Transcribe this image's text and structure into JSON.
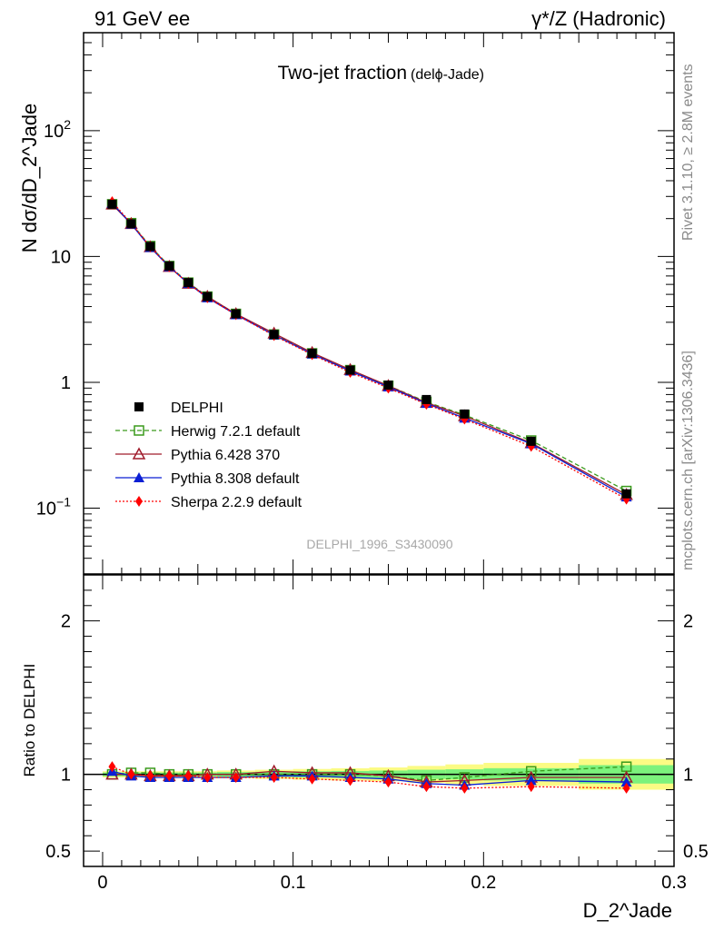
{
  "header": {
    "left": "91 GeV ee",
    "right": "γ*/Z (Hadronic)"
  },
  "side_labels": {
    "rivet": "Rivet 3.1.10, ≥ 2.8M events",
    "mcplots": "mcplots.cern.ch [arXiv:1306.3436]"
  },
  "plot": {
    "title": "Two-jet fraction",
    "title_small": "(delϕ-Jade)",
    "analysis_id": "DELPHI_1996_S3430090"
  },
  "chart_data": [
    {
      "type": "line",
      "panel": "main",
      "title": "Two-jet fraction (delϕ-Jade)",
      "ylabel": "N dσ/dD_2^Jade",
      "yscale": "log",
      "ylim": [
        0.03,
        600
      ],
      "xlim": [
        -0.01,
        0.3
      ],
      "y_ticks": [
        "10^-1",
        "1",
        "10",
        "10^2"
      ],
      "legend_position": "lower-left",
      "x": [
        0.005,
        0.015,
        0.025,
        0.035,
        0.045,
        0.055,
        0.07,
        0.09,
        0.11,
        0.13,
        0.15,
        0.17,
        0.19,
        0.225,
        0.275
      ],
      "series": [
        {
          "name": "DELPHI",
          "color": "#000000",
          "marker": "square-filled",
          "line": "none",
          "values": [
            26.0,
            18.2,
            12.0,
            8.4,
            6.2,
            4.8,
            3.5,
            2.4,
            1.7,
            1.25,
            0.95,
            0.73,
            0.56,
            0.34,
            0.13
          ]
        },
        {
          "name": "Herwig 7.2.1 default",
          "color": "#3a9a1c",
          "marker": "square-open",
          "line": "dashed",
          "values": [
            26.0,
            18.4,
            12.1,
            8.4,
            6.2,
            4.8,
            3.5,
            2.4,
            1.7,
            1.25,
            0.94,
            0.7,
            0.55,
            0.345,
            0.137
          ]
        },
        {
          "name": "Pythia 6.428 370",
          "color": "#a01c2c",
          "marker": "triangle-open",
          "line": "solid",
          "values": [
            26.0,
            18.2,
            11.9,
            8.3,
            6.1,
            4.8,
            3.5,
            2.45,
            1.72,
            1.26,
            0.94,
            0.69,
            0.54,
            0.33,
            0.128
          ]
        },
        {
          "name": "Pythia 8.308 default",
          "color": "#0b1fd4",
          "marker": "triangle-filled",
          "line": "solid",
          "values": [
            26.5,
            18.1,
            11.8,
            8.3,
            6.1,
            4.7,
            3.45,
            2.38,
            1.68,
            1.23,
            0.92,
            0.68,
            0.52,
            0.325,
            0.123
          ]
        },
        {
          "name": "Sherpa 2.2.9 default",
          "color": "#ff0000",
          "marker": "diamond-filled",
          "line": "dotted",
          "values": [
            27.3,
            18.3,
            11.9,
            8.3,
            6.1,
            4.7,
            3.45,
            2.35,
            1.66,
            1.2,
            0.9,
            0.67,
            0.51,
            0.31,
            0.118
          ]
        }
      ]
    },
    {
      "type": "line",
      "panel": "ratio",
      "xlabel": "D_2^Jade",
      "ylabel": "Ratio to DELPHI",
      "xlim": [
        -0.01,
        0.3
      ],
      "ylim": [
        0.4,
        2.3
      ],
      "y_ticks": [
        "0.5",
        "1",
        "2"
      ],
      "x_ticks": [
        "0",
        "0.1",
        "0.2",
        "0.3"
      ],
      "x": [
        0.005,
        0.015,
        0.025,
        0.035,
        0.045,
        0.055,
        0.07,
        0.09,
        0.11,
        0.13,
        0.15,
        0.17,
        0.19,
        0.225,
        0.275
      ],
      "bins": [
        [
          0.0,
          0.01
        ],
        [
          0.01,
          0.02
        ],
        [
          0.02,
          0.03
        ],
        [
          0.03,
          0.04
        ],
        [
          0.04,
          0.05
        ],
        [
          0.05,
          0.06
        ],
        [
          0.06,
          0.08
        ],
        [
          0.08,
          0.1
        ],
        [
          0.1,
          0.12
        ],
        [
          0.12,
          0.14
        ],
        [
          0.14,
          0.16
        ],
        [
          0.16,
          0.18
        ],
        [
          0.18,
          0.2
        ],
        [
          0.2,
          0.25
        ],
        [
          0.25,
          0.3
        ]
      ],
      "bands": [
        {
          "name": "stat",
          "color": "#7cf27c",
          "half_width": [
            0.012,
            0.012,
            0.012,
            0.012,
            0.012,
            0.012,
            0.015,
            0.017,
            0.02,
            0.022,
            0.025,
            0.03,
            0.033,
            0.04,
            0.06
          ]
        },
        {
          "name": "total",
          "color": "#fbfb84",
          "half_width": [
            0.02,
            0.02,
            0.02,
            0.02,
            0.02,
            0.02,
            0.025,
            0.03,
            0.035,
            0.04,
            0.045,
            0.055,
            0.065,
            0.075,
            0.1
          ]
        }
      ],
      "series": [
        {
          "name": "Herwig 7.2.1 default",
          "color": "#3a9a1c",
          "marker": "square-open",
          "line": "dashed",
          "values": [
            1.0,
            1.01,
            1.01,
            1.0,
            1.0,
            1.0,
            1.0,
            1.0,
            1.0,
            1.0,
            0.99,
            0.96,
            0.98,
            1.02,
            1.05
          ]
        },
        {
          "name": "Pythia 6.428 370",
          "color": "#a01c2c",
          "marker": "triangle-open",
          "line": "solid",
          "values": [
            1.0,
            1.0,
            0.99,
            0.99,
            0.99,
            1.0,
            1.0,
            1.02,
            1.01,
            1.01,
            0.99,
            0.95,
            0.96,
            0.98,
            0.98
          ]
        },
        {
          "name": "Pythia 8.308 default",
          "color": "#0b1fd4",
          "marker": "triangle-filled",
          "line": "solid",
          "values": [
            1.02,
            0.99,
            0.98,
            0.98,
            0.98,
            0.98,
            0.98,
            0.99,
            0.99,
            0.98,
            0.97,
            0.94,
            0.93,
            0.96,
            0.95
          ]
        },
        {
          "name": "Sherpa 2.2.9 default",
          "color": "#ff0000",
          "marker": "diamond-filled",
          "line": "dotted",
          "values": [
            1.05,
            1.0,
            0.99,
            0.99,
            0.99,
            0.98,
            0.98,
            0.98,
            0.97,
            0.96,
            0.95,
            0.92,
            0.91,
            0.92,
            0.91
          ]
        }
      ]
    }
  ]
}
